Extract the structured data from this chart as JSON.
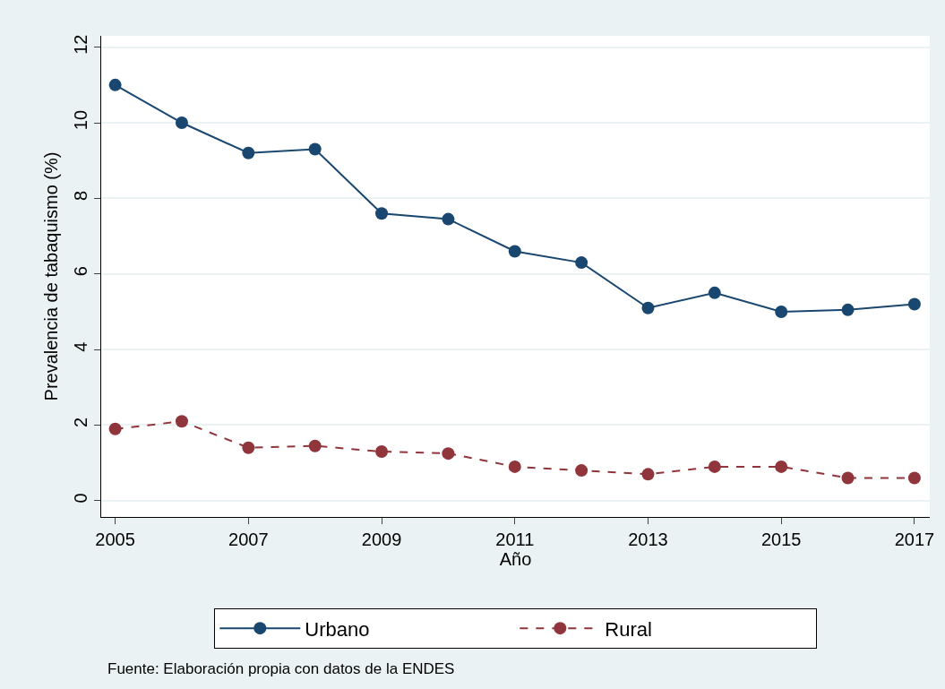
{
  "chart_data": {
    "type": "line",
    "xlabel": "Año",
    "ylabel": "Prevalencia de tabaquismo (%)",
    "x": [
      2005,
      2006,
      2007,
      2008,
      2009,
      2010,
      2011,
      2012,
      2013,
      2014,
      2015,
      2016,
      2017
    ],
    "series": [
      {
        "name": "Urbano",
        "color": "#1a476f",
        "line_style": "solid",
        "values": [
          11.0,
          10.0,
          9.2,
          9.3,
          7.6,
          7.45,
          6.6,
          6.3,
          5.1,
          5.5,
          5.0,
          5.05,
          5.2
        ]
      },
      {
        "name": "Rural",
        "color": "#90353b",
        "line_style": "dashed",
        "values": [
          1.9,
          2.1,
          1.4,
          1.45,
          1.3,
          1.25,
          0.9,
          0.8,
          0.7,
          0.9,
          0.9,
          0.6,
          0.6
        ]
      }
    ],
    "xlim": [
      2004.79,
      2017.23
    ],
    "xticks": [
      2005,
      2007,
      2009,
      2011,
      2013,
      2015,
      2017
    ],
    "ylim": [
      -0.43,
      12.3
    ],
    "yticks": [
      0,
      2,
      4,
      6,
      8,
      10,
      12
    ],
    "grid": "y",
    "legend": "bottom",
    "marker": "circle",
    "annotations": [
      "Fuente: Elaboración propia con datos de la ENDES"
    ]
  }
}
